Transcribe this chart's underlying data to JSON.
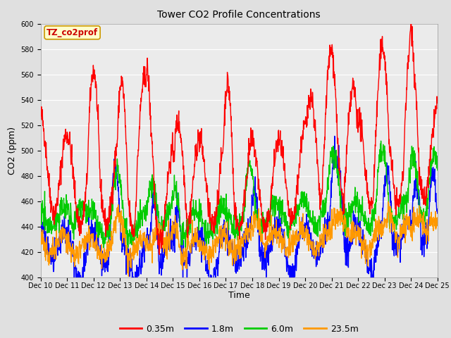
{
  "title": "Tower CO2 Profile Concentrations",
  "xlabel": "Time",
  "ylabel": "CO2 (ppm)",
  "annotation": "TZ_co2prof",
  "annotation_color": "#cc0000",
  "ylim": [
    400,
    600
  ],
  "yticks": [
    400,
    420,
    440,
    460,
    480,
    500,
    520,
    540,
    560,
    580,
    600
  ],
  "x_labels": [
    "Dec 10",
    "Dec 11",
    "Dec 12",
    "Dec 13",
    "Dec 14",
    "Dec 15",
    "Dec 16",
    "Dec 17",
    "Dec 18",
    "Dec 19",
    "Dec 20",
    "Dec 21",
    "Dec 22",
    "Dec 23",
    "Dec 24",
    "Dec 25"
  ],
  "series_colors": [
    "#ff0000",
    "#0000ff",
    "#00cc00",
    "#ff9900"
  ],
  "series_labels": [
    "0.35m",
    "1.8m",
    "6.0m",
    "23.5m"
  ],
  "line_width": 1.0,
  "fig_bg_color": "#e0e0e0",
  "plot_bg_color": "#ebebeb",
  "annotation_bg": "#ffffcc",
  "annotation_border": "#cc9900",
  "grid_color": "#ffffff",
  "tick_fontsize": 7,
  "title_fontsize": 10,
  "axis_label_fontsize": 9
}
